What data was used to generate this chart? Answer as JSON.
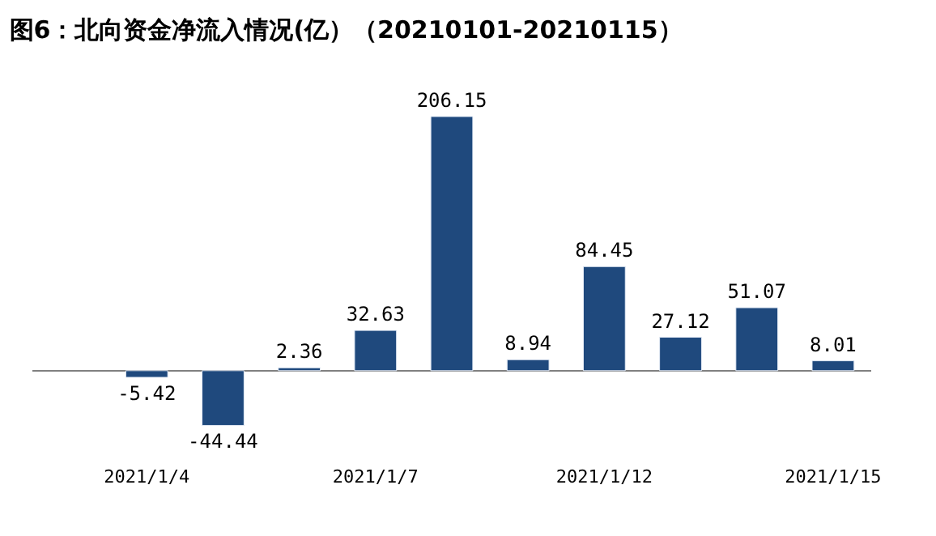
{
  "chart_data": {
    "type": "bar",
    "title": "图6：北向资金净流入情况(亿）（20210101-20210115）",
    "categories": [
      null,
      "2021/1/4",
      null,
      null,
      "2021/1/7",
      null,
      null,
      "2021/1/12",
      null,
      null,
      "2021/1/15"
    ],
    "values": [
      null,
      -5.42,
      -44.44,
      2.36,
      32.63,
      206.15,
      8.94,
      84.45,
      27.12,
      51.07,
      8.01
    ],
    "color": "#1f497d",
    "data_labels": true
  }
}
